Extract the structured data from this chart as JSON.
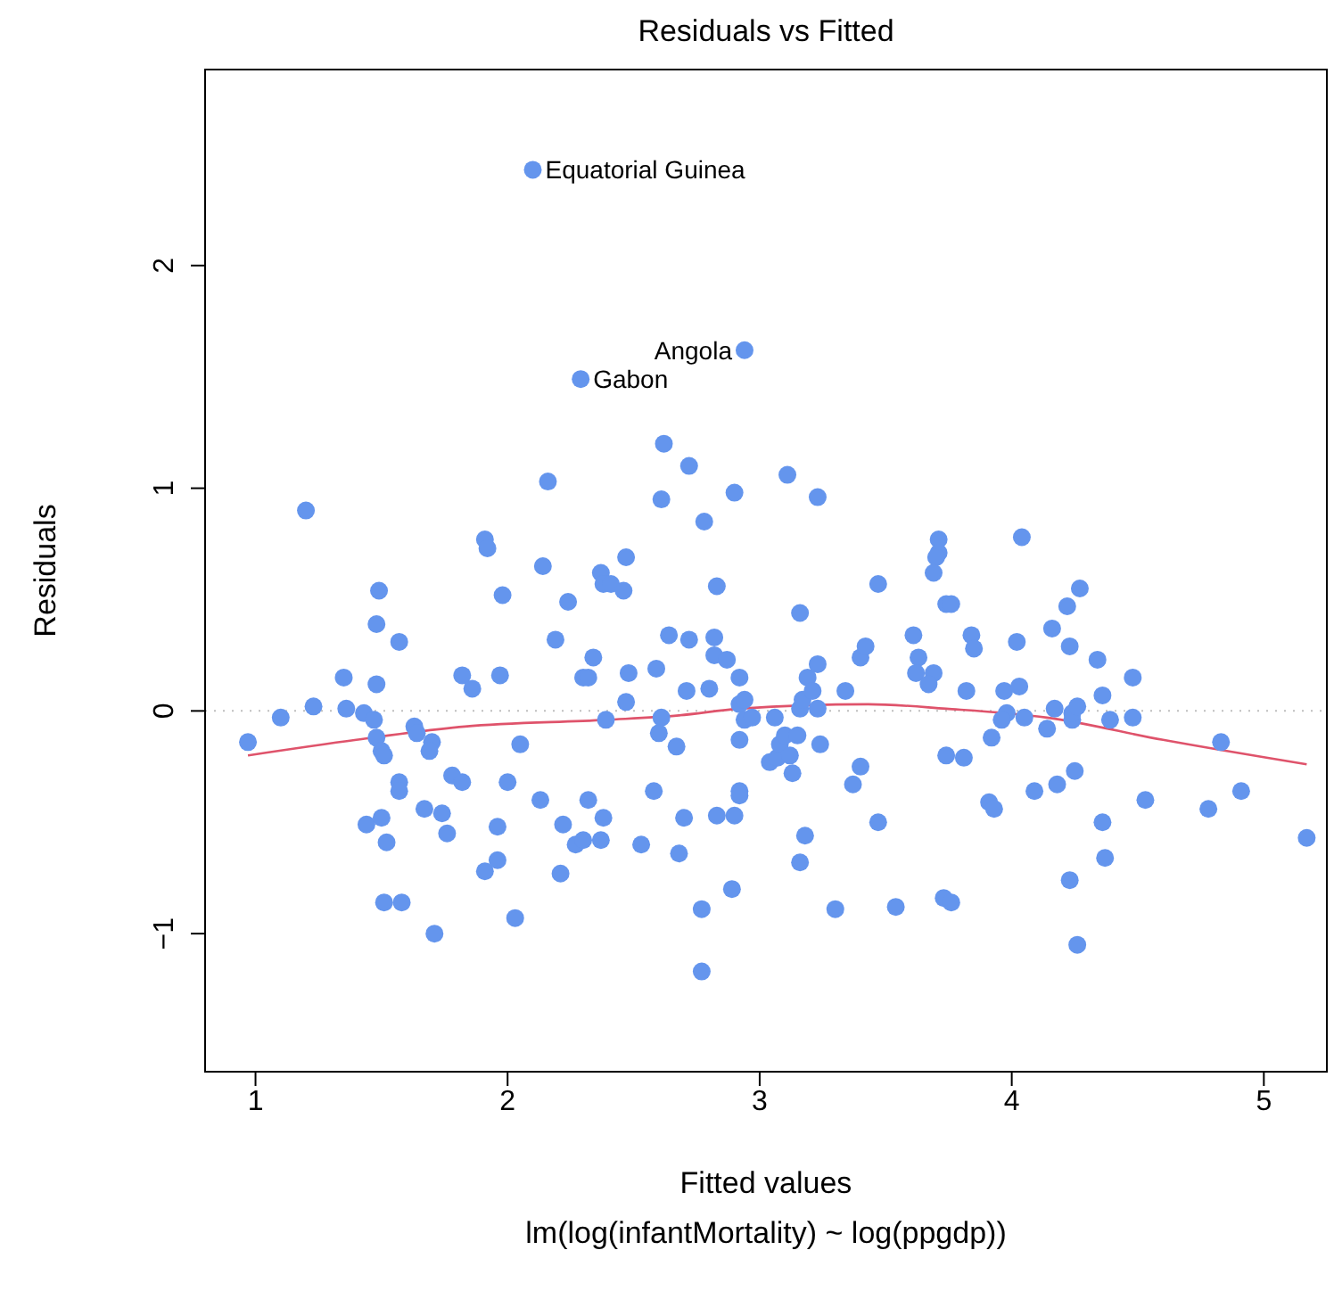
{
  "chart_data": {
    "type": "scatter",
    "title": "Residuals vs Fitted",
    "xlabel": "Fitted values",
    "ylabel": "Residuals",
    "xlim": [
      0.8,
      5.25
    ],
    "ylim": [
      -1.62,
      2.88
    ],
    "xticks": [
      1,
      2,
      3,
      4,
      5
    ],
    "yticks": [
      -1,
      0,
      1,
      2
    ],
    "marker": "circle",
    "ref_lines": [
      {
        "axis": "y",
        "value": 0,
        "color": "#bebebe",
        "line_style": "dotted"
      }
    ],
    "annotations": [
      {
        "text": "Equatorial Guinea",
        "x": 2.1,
        "y": 2.43
      },
      {
        "text": "Gabon",
        "x": 2.29,
        "y": 1.49
      },
      {
        "text": "Angola",
        "x": 2.94,
        "y": 1.62
      },
      "lm(log(infantMortality) ~ log(ppgdp))"
    ],
    "series": [
      {
        "color": "#6495ed",
        "x": [
          0.97,
          1.1,
          1.2,
          1.23,
          1.35,
          1.36,
          1.43,
          1.47,
          1.48,
          1.48,
          1.49,
          1.48,
          1.5,
          1.51,
          1.44,
          1.5,
          1.52,
          1.51,
          1.57,
          1.57,
          1.57,
          1.58,
          1.63,
          1.64,
          1.7,
          1.69,
          1.67,
          1.71,
          1.74,
          1.76,
          1.78,
          1.82,
          1.82,
          1.86,
          1.91,
          1.91,
          1.92,
          1.96,
          1.96,
          1.97,
          1.98,
          2.0,
          2.03,
          2.05,
          2.1,
          2.13,
          2.14,
          2.16,
          2.19,
          2.21,
          2.22,
          2.24,
          2.27,
          2.3,
          2.29,
          2.3,
          2.32,
          2.32,
          2.37,
          2.34,
          2.37,
          2.38,
          2.38,
          2.39,
          2.41,
          2.46,
          2.47,
          2.48,
          2.47,
          2.53,
          2.58,
          2.59,
          2.61,
          2.6,
          2.61,
          2.62,
          2.64,
          2.67,
          2.68,
          2.7,
          2.71,
          2.72,
          2.72,
          2.77,
          2.77,
          2.78,
          2.8,
          2.82,
          2.82,
          2.83,
          2.83,
          2.87,
          2.89,
          2.9,
          2.9,
          2.92,
          2.92,
          2.92,
          2.92,
          2.92,
          2.94,
          2.94,
          2.94,
          2.97,
          3.04,
          3.06,
          3.07,
          3.08,
          3.1,
          3.11,
          3.12,
          3.13,
          3.15,
          3.16,
          3.16,
          3.16,
          3.17,
          3.18,
          3.19,
          3.21,
          3.23,
          3.23,
          3.23,
          3.24,
          3.3,
          3.34,
          3.37,
          3.4,
          3.4,
          3.42,
          3.47,
          3.47,
          3.54,
          3.61,
          3.63,
          3.62,
          3.69,
          3.67,
          3.71,
          3.71,
          3.7,
          3.69,
          3.74,
          3.74,
          3.73,
          3.76,
          3.76,
          3.81,
          3.84,
          3.85,
          3.82,
          3.91,
          3.93,
          3.92,
          3.97,
          4.03,
          4.02,
          4.04,
          3.98,
          3.96,
          4.05,
          4.09,
          4.14,
          4.16,
          4.17,
          4.18,
          4.22,
          4.23,
          4.23,
          4.24,
          4.24,
          4.25,
          4.26,
          4.26,
          4.27,
          4.34,
          4.36,
          4.36,
          4.37,
          4.39,
          4.48,
          4.48,
          4.53,
          4.78,
          4.83,
          4.91,
          5.17
        ],
        "values": [
          -0.14,
          -0.03,
          0.9,
          0.02,
          0.15,
          0.01,
          -0.01,
          -0.04,
          0.12,
          0.39,
          0.54,
          -0.12,
          -0.18,
          -0.2,
          -0.51,
          -0.48,
          -0.59,
          -0.86,
          0.31,
          -0.32,
          -0.36,
          -0.86,
          -0.07,
          -0.1,
          -0.14,
          -0.18,
          -0.44,
          -1.0,
          -0.46,
          -0.55,
          -0.29,
          -0.32,
          0.16,
          0.1,
          -0.72,
          0.77,
          0.73,
          -0.52,
          -0.67,
          0.16,
          0.52,
          -0.32,
          -0.93,
          -0.15,
          2.43,
          -0.4,
          0.65,
          1.03,
          0.32,
          -0.73,
          -0.51,
          0.49,
          -0.6,
          -0.58,
          1.49,
          0.15,
          0.15,
          -0.4,
          -0.58,
          0.24,
          0.62,
          0.57,
          -0.48,
          -0.04,
          0.57,
          0.54,
          0.69,
          0.17,
          0.04,
          -0.6,
          -0.36,
          0.19,
          -0.03,
          -0.1,
          0.95,
          1.2,
          0.34,
          -0.16,
          -0.64,
          -0.48,
          0.09,
          0.32,
          1.1,
          -0.89,
          -1.17,
          0.85,
          0.1,
          0.33,
          0.25,
          0.56,
          -0.47,
          0.23,
          -0.8,
          0.98,
          -0.47,
          0.15,
          0.03,
          -0.13,
          -0.36,
          -0.38,
          0.05,
          1.62,
          -0.04,
          -0.03,
          -0.23,
          -0.03,
          -0.21,
          -0.15,
          -0.11,
          1.06,
          -0.2,
          -0.28,
          -0.11,
          -0.68,
          0.01,
          0.44,
          0.05,
          -0.56,
          0.15,
          0.09,
          0.96,
          0.21,
          0.01,
          -0.15,
          -0.89,
          0.09,
          -0.33,
          0.24,
          -0.25,
          0.29,
          0.57,
          -0.5,
          -0.88,
          0.34,
          0.24,
          0.17,
          0.17,
          0.12,
          0.77,
          0.71,
          0.69,
          0.62,
          0.48,
          -0.2,
          -0.84,
          -0.86,
          0.48,
          -0.21,
          0.34,
          0.28,
          0.09,
          -0.41,
          -0.44,
          -0.12,
          0.09,
          0.11,
          0.31,
          0.78,
          -0.01,
          -0.04,
          -0.03,
          -0.36,
          -0.08,
          0.37,
          0.01,
          -0.33,
          0.47,
          0.29,
          -0.76,
          -0.04,
          -0.01,
          -0.27,
          0.02,
          -1.05,
          0.55,
          0.23,
          0.07,
          -0.5,
          -0.66,
          -0.04,
          -0.03,
          0.15,
          -0.4,
          -0.44,
          -0.14,
          -0.36,
          -0.57
        ]
      },
      {
        "type": "line",
        "color": "#df536b",
        "line_style": "solid",
        "marker": "none",
        "x": [
          0.97,
          1.4,
          1.83,
          2.39,
          2.68,
          2.92,
          3.43,
          3.74,
          4.14,
          4.6,
          5.17
        ],
        "values": [
          -0.2,
          -0.13,
          -0.07,
          -0.04,
          -0.02,
          0.01,
          0.03,
          0.01,
          -0.03,
          -0.13,
          -0.24
        ]
      }
    ]
  }
}
